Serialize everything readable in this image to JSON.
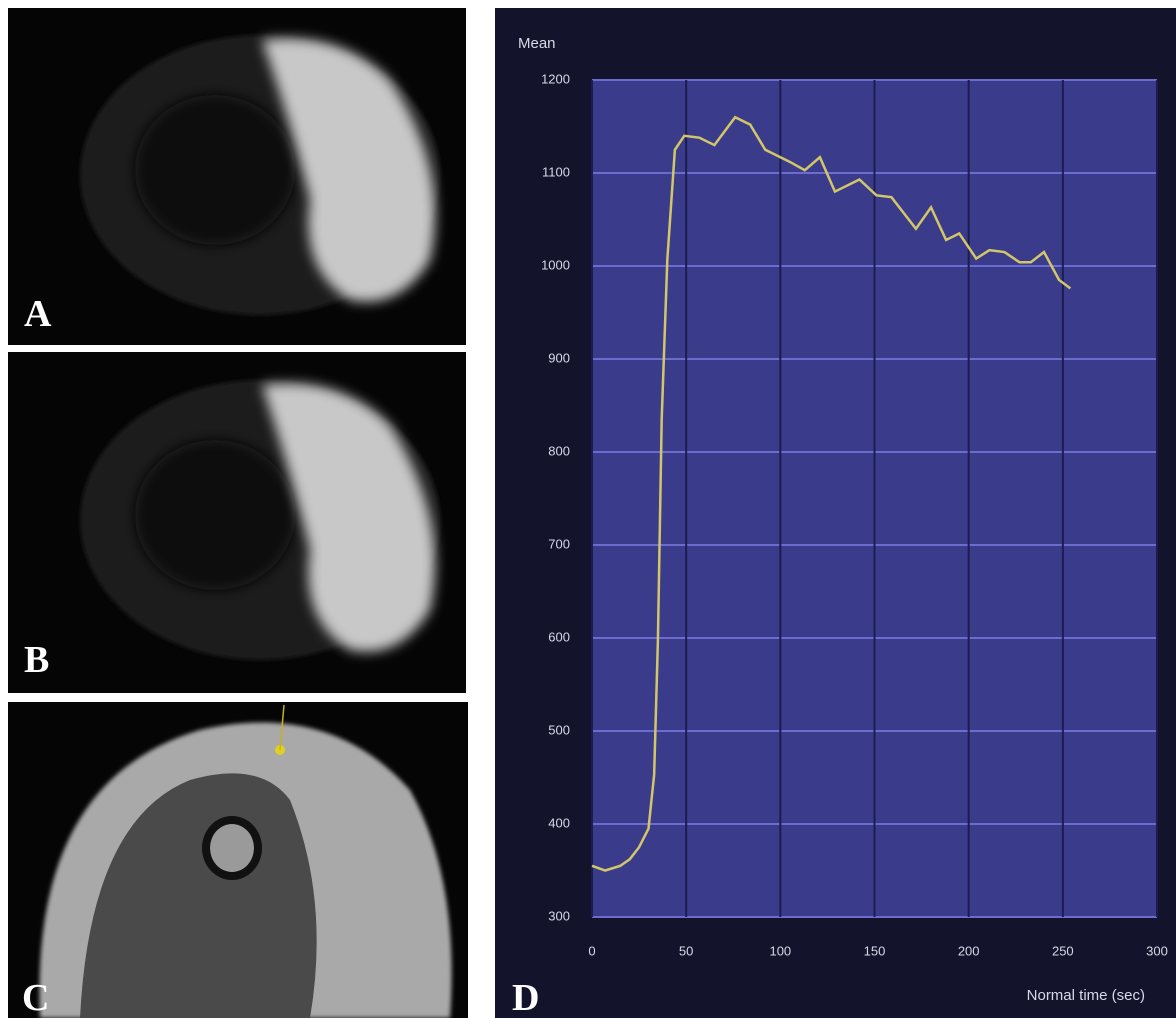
{
  "panel_labels": [
    "A",
    "B",
    "C",
    "D"
  ],
  "chart_data": {
    "type": "line",
    "ylabel": "Mean",
    "xlabel": "Normal time (sec)",
    "x": [
      0,
      7,
      15,
      20,
      25,
      30,
      33,
      35,
      37,
      40,
      44,
      49,
      57,
      65,
      76,
      84,
      92,
      105,
      113,
      121,
      129,
      142,
      151,
      159,
      172,
      180,
      188,
      195,
      204,
      211,
      219,
      227,
      233,
      240,
      248,
      254
    ],
    "values": [
      355,
      350,
      355,
      362,
      375,
      395,
      453,
      598,
      835,
      1007,
      1125,
      1140,
      1138,
      1130,
      1160,
      1152,
      1125,
      1112,
      1103,
      1117,
      1080,
      1093,
      1076,
      1074,
      1040,
      1063,
      1028,
      1035,
      1008,
      1017,
      1015,
      1004,
      1004,
      1015,
      985,
      976
    ],
    "color": "#d2c768",
    "xlim": [
      0,
      300
    ],
    "ylim": [
      300,
      1200
    ],
    "xticks": [
      0,
      50,
      100,
      150,
      200,
      250,
      300
    ],
    "yticks": [
      300,
      400,
      500,
      600,
      700,
      800,
      900,
      1000,
      1100,
      1200
    ],
    "grid": true
  }
}
